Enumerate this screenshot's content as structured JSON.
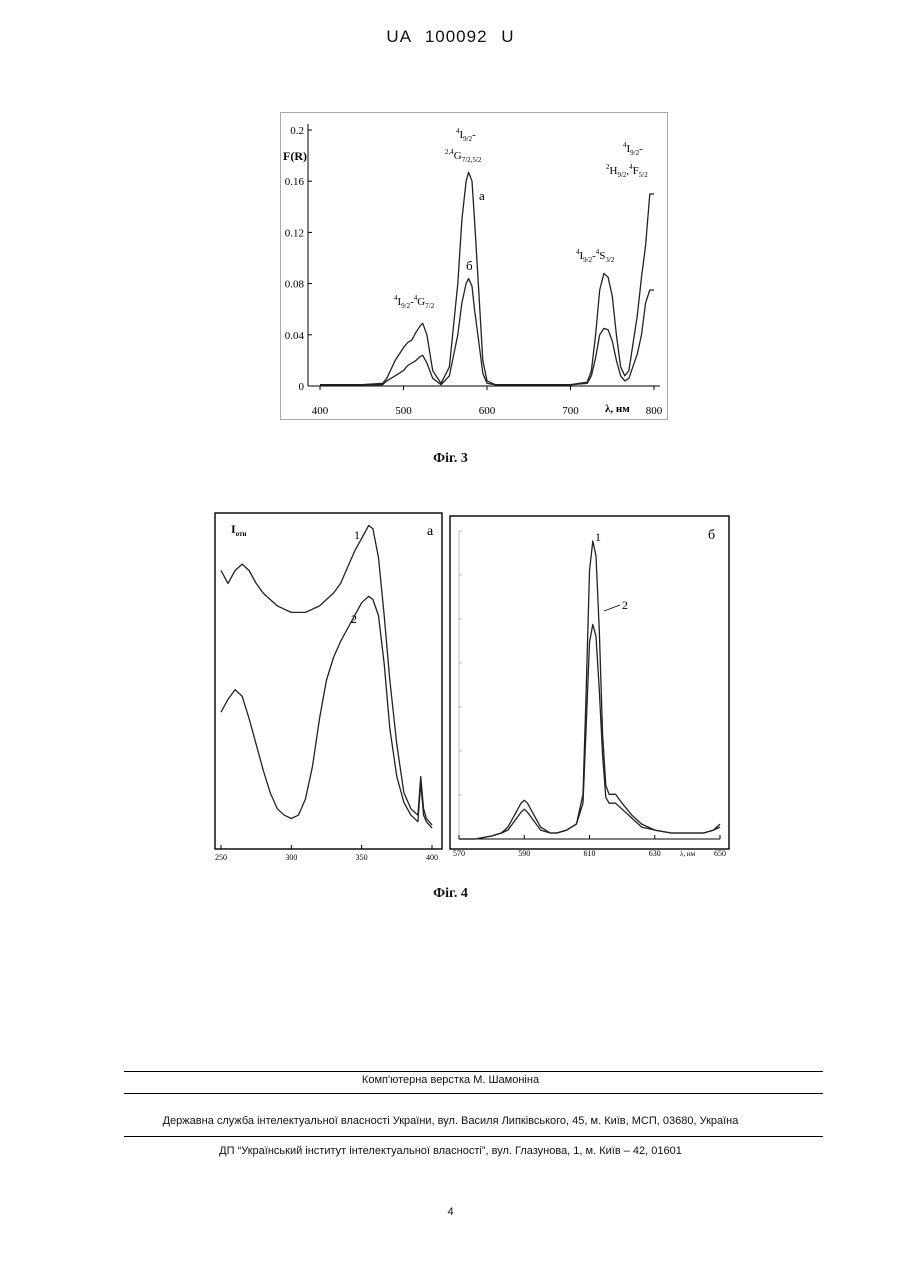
{
  "header": {
    "patent_number": "UA 100092 U"
  },
  "fig3": {
    "caption": "Фіг. 3",
    "y_label": "F(R)",
    "x_unit_label": "λ, нм",
    "curve_a_label": "а",
    "curve_b_label": "б",
    "transitions": [
      {
        "lead": "4",
        "base": "I",
        "sub": "9/2",
        "dash": "-",
        "lead2": "4",
        "base2": "G",
        "sub2": "7/2"
      },
      {
        "lead": "4",
        "base": "I",
        "sub": "9/2",
        "dash": "-"
      },
      {
        "lead": "2,4",
        "base": "G",
        "sub": "7/2,5/2"
      },
      {
        "lead": "4",
        "base": "I",
        "sub": "9/2",
        "dash": "-",
        "lead2": "4",
        "base2": "S",
        "sub2": "3/2"
      },
      {
        "lead": "4",
        "base": "I",
        "sub": "9/2",
        "dash": "-"
      },
      {
        "lead": "2",
        "base": "H",
        "sub": "9/2",
        "comma": ",",
        "lead2": "4",
        "base2": "F",
        "sub2": "5/2"
      }
    ]
  },
  "fig4": {
    "caption": "Фіг. 4",
    "panel_a": {
      "letter": "а",
      "y_label_main": "I",
      "y_label_sub": "отн",
      "curve1_label": "1",
      "curve2_label": "2"
    },
    "panel_b": {
      "letter": "б",
      "x_unit_label": "λ, нм",
      "curve1_label": "1",
      "curve2_label": "2"
    }
  },
  "footer": {
    "layout_credit": "Комп'ютерна верстка М. Шамоніна",
    "agency": "Державна служба інтелектуальної власності України, вул. Василя Липківського, 45, м. Київ, МСП, 03680, Україна",
    "institute": "ДП “Український інститут інтелектуальної власності”, вул. Глазунова, 1, м. Київ – 42, 01601",
    "page_number": "4"
  },
  "chart_data": [
    {
      "id": "fig3",
      "type": "line",
      "ylabel": "F(R)",
      "xlabel": "λ, нм",
      "xlim": [
        400,
        800
      ],
      "ylim": [
        0,
        0.2
      ],
      "x_ticks": [
        "400",
        "500",
        "600",
        "700",
        "800"
      ],
      "y_ticks": [
        "0",
        "0.04",
        "0.08",
        "0.12",
        "0.16",
        "0.2"
      ],
      "x": [
        400,
        450,
        475,
        480,
        490,
        500,
        505,
        510,
        515,
        520,
        523,
        528,
        535,
        545,
        555,
        565,
        570,
        575,
        578,
        582,
        585,
        590,
        595,
        600,
        610,
        650,
        700,
        720,
        725,
        730,
        735,
        740,
        745,
        750,
        755,
        760,
        765,
        770,
        780,
        785,
        790,
        795,
        800
      ],
      "series": [
        {
          "name": "а",
          "values": [
            0.001,
            0.001,
            0.002,
            0.006,
            0.02,
            0.03,
            0.034,
            0.036,
            0.042,
            0.047,
            0.049,
            0.04,
            0.012,
            0.002,
            0.015,
            0.08,
            0.13,
            0.16,
            0.167,
            0.16,
            0.13,
            0.075,
            0.02,
            0.004,
            0.001,
            0.001,
            0.001,
            0.003,
            0.012,
            0.04,
            0.075,
            0.088,
            0.085,
            0.07,
            0.04,
            0.015,
            0.008,
            0.012,
            0.055,
            0.085,
            0.11,
            0.15,
            0.15
          ]
        },
        {
          "name": "б",
          "values": [
            0.001,
            0.001,
            0.001,
            0.004,
            0.008,
            0.012,
            0.016,
            0.018,
            0.02,
            0.023,
            0.024,
            0.018,
            0.006,
            0.001,
            0.008,
            0.04,
            0.065,
            0.08,
            0.084,
            0.078,
            0.06,
            0.035,
            0.01,
            0.002,
            0.001,
            0.001,
            0.001,
            0.002,
            0.008,
            0.022,
            0.04,
            0.045,
            0.044,
            0.035,
            0.02,
            0.008,
            0.004,
            0.006,
            0.025,
            0.04,
            0.065,
            0.075,
            0.075
          ]
        }
      ]
    },
    {
      "id": "fig4a",
      "type": "line",
      "ylabel": "I отн",
      "xlim": [
        250,
        400
      ],
      "x_ticks": [
        "250",
        "300",
        "350",
        "400"
      ],
      "x": [
        250,
        255,
        260,
        265,
        270,
        275,
        280,
        285,
        290,
        295,
        300,
        305,
        310,
        315,
        320,
        325,
        330,
        335,
        340,
        345,
        350,
        355,
        358,
        362,
        366,
        370,
        375,
        380,
        385,
        390,
        392,
        394,
        396,
        400
      ],
      "series": [
        {
          "name": "1",
          "values": [
            0.84,
            0.8,
            0.84,
            0.86,
            0.84,
            0.8,
            0.77,
            0.75,
            0.73,
            0.72,
            0.71,
            0.71,
            0.71,
            0.72,
            0.73,
            0.75,
            0.77,
            0.8,
            0.85,
            0.9,
            0.94,
            0.98,
            0.97,
            0.88,
            0.7,
            0.5,
            0.3,
            0.15,
            0.1,
            0.08,
            0.2,
            0.1,
            0.07,
            0.05
          ]
        },
        {
          "name": "2",
          "values": [
            0.4,
            0.44,
            0.47,
            0.45,
            0.38,
            0.3,
            0.22,
            0.15,
            0.1,
            0.08,
            0.07,
            0.08,
            0.13,
            0.23,
            0.38,
            0.5,
            0.57,
            0.62,
            0.66,
            0.7,
            0.74,
            0.76,
            0.75,
            0.7,
            0.55,
            0.35,
            0.2,
            0.12,
            0.08,
            0.06,
            0.18,
            0.08,
            0.06,
            0.04
          ]
        }
      ]
    },
    {
      "id": "fig4b",
      "type": "line",
      "xlabel": "λ, нм",
      "xlim": [
        570,
        650
      ],
      "x_ticks": [
        "570",
        "590",
        "610",
        "630",
        "650"
      ],
      "x": [
        570,
        575,
        580,
        583,
        585,
        587,
        589,
        590,
        591,
        593,
        595,
        598,
        600,
        603,
        606,
        608,
        609,
        610,
        611,
        612,
        613,
        614,
        615,
        616,
        618,
        620,
        623,
        626,
        630,
        635,
        640,
        645,
        648,
        650
      ],
      "series": [
        {
          "name": "1",
          "values": [
            0.0,
            0.0,
            0.01,
            0.02,
            0.04,
            0.08,
            0.12,
            0.13,
            0.12,
            0.08,
            0.04,
            0.02,
            0.02,
            0.03,
            0.05,
            0.15,
            0.5,
            0.9,
            1.0,
            0.95,
            0.7,
            0.35,
            0.18,
            0.15,
            0.15,
            0.12,
            0.08,
            0.05,
            0.03,
            0.02,
            0.02,
            0.02,
            0.03,
            0.05
          ]
        },
        {
          "name": "2",
          "values": [
            0.0,
            0.0,
            0.01,
            0.02,
            0.03,
            0.06,
            0.09,
            0.1,
            0.09,
            0.06,
            0.03,
            0.02,
            0.02,
            0.03,
            0.05,
            0.12,
            0.38,
            0.66,
            0.72,
            0.68,
            0.5,
            0.28,
            0.14,
            0.12,
            0.12,
            0.1,
            0.07,
            0.04,
            0.03,
            0.02,
            0.02,
            0.02,
            0.03,
            0.04
          ]
        }
      ]
    }
  ]
}
